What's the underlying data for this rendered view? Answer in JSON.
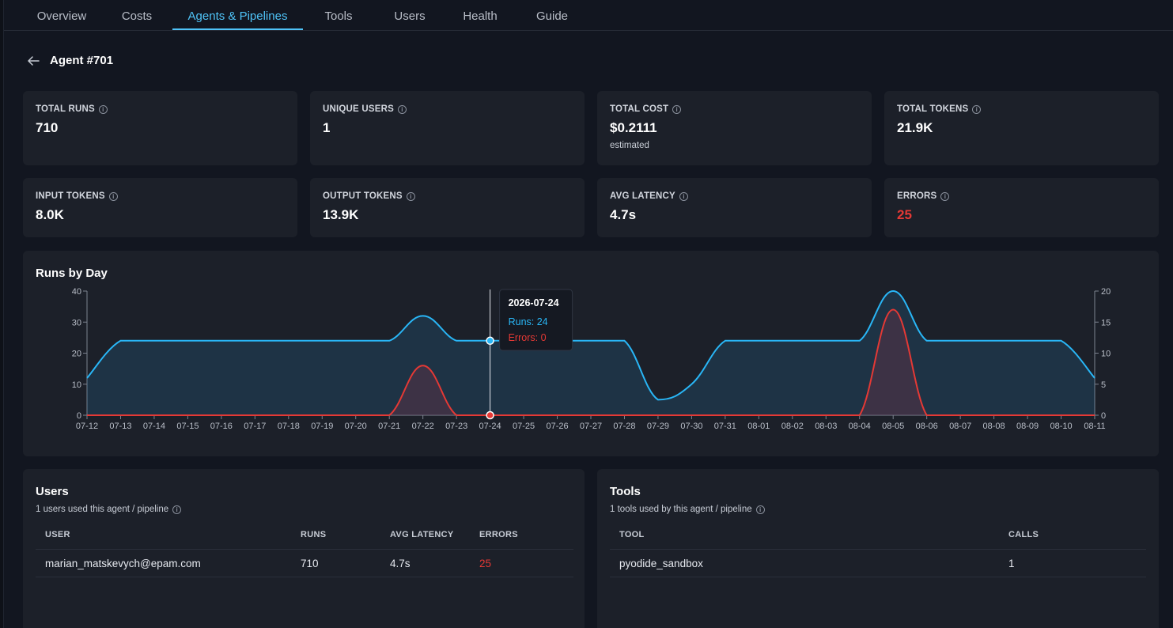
{
  "nav": {
    "tabs": [
      {
        "label": "Overview"
      },
      {
        "label": "Costs"
      },
      {
        "label": "Agents & Pipelines"
      },
      {
        "label": "Tools"
      },
      {
        "label": "Users"
      },
      {
        "label": "Health"
      },
      {
        "label": "Guide"
      }
    ],
    "active": "Agents & Pipelines"
  },
  "header": {
    "back_icon": "arrow-left-icon",
    "title": "Agent #701"
  },
  "stats": [
    {
      "label": "TOTAL RUNS",
      "value": "710"
    },
    {
      "label": "UNIQUE USERS",
      "value": "1"
    },
    {
      "label": "TOTAL COST",
      "value": "$0.2111",
      "sub": "estimated"
    },
    {
      "label": "TOTAL TOKENS",
      "value": "21.9K"
    },
    {
      "label": "INPUT TOKENS",
      "value": "8.0K"
    },
    {
      "label": "OUTPUT TOKENS",
      "value": "13.9K"
    },
    {
      "label": "AVG LATENCY",
      "value": "4.7s"
    },
    {
      "label": "ERRORS",
      "value": "25"
    }
  ],
  "info_glyph": "i",
  "chart": {
    "title": "Runs by Day",
    "tooltip": {
      "date": "2026-07-24",
      "runs_text": "Runs: 24",
      "errors_text": "Errors: 0"
    }
  },
  "chart_data": {
    "type": "area",
    "x": [
      "07-12",
      "07-13",
      "07-14",
      "07-15",
      "07-16",
      "07-17",
      "07-18",
      "07-19",
      "07-20",
      "07-21",
      "07-22",
      "07-23",
      "07-24",
      "07-25",
      "07-26",
      "07-27",
      "07-28",
      "07-29",
      "07-30",
      "07-31",
      "08-01",
      "08-02",
      "08-03",
      "08-04",
      "08-05",
      "08-06",
      "08-07",
      "08-08",
      "08-09",
      "08-10",
      "08-11"
    ],
    "series": [
      {
        "name": "Runs",
        "axis": "left",
        "color": "#29b6f6",
        "values": [
          12,
          24,
          24,
          24,
          24,
          24,
          24,
          24,
          24,
          24,
          32,
          24,
          24,
          24,
          24,
          24,
          24,
          5,
          10,
          24,
          24,
          24,
          24,
          24,
          40,
          24,
          24,
          24,
          24,
          24,
          12
        ]
      },
      {
        "name": "Errors",
        "axis": "right",
        "color": "#e53935",
        "values": [
          0,
          0,
          0,
          0,
          0,
          0,
          0,
          0,
          0,
          0,
          8,
          0,
          0,
          0,
          0,
          0,
          0,
          0,
          0,
          0,
          0,
          0,
          0,
          0,
          17,
          0,
          0,
          0,
          0,
          0,
          0
        ]
      }
    ],
    "y_left": {
      "range": [
        0,
        40
      ],
      "ticks": [
        0,
        10,
        20,
        30,
        40
      ]
    },
    "y_right": {
      "range": [
        0,
        20
      ],
      "ticks": [
        0,
        5,
        10,
        15,
        20
      ]
    },
    "highlight": "07-24"
  },
  "users_panel": {
    "title": "Users",
    "subtitle": "1 users used this agent / pipeline",
    "columns": [
      "USER",
      "RUNS",
      "AVG LATENCY",
      "ERRORS"
    ],
    "rows": [
      {
        "user": "marian_matskevych@epam.com",
        "runs": "710",
        "latency": "4.7s",
        "errors": "25"
      }
    ]
  },
  "tools_panel": {
    "title": "Tools",
    "subtitle": "1 tools used by this agent / pipeline",
    "columns": [
      "TOOL",
      "CALLS"
    ],
    "rows": [
      {
        "tool": "pyodide_sandbox",
        "calls": "1"
      }
    ]
  }
}
